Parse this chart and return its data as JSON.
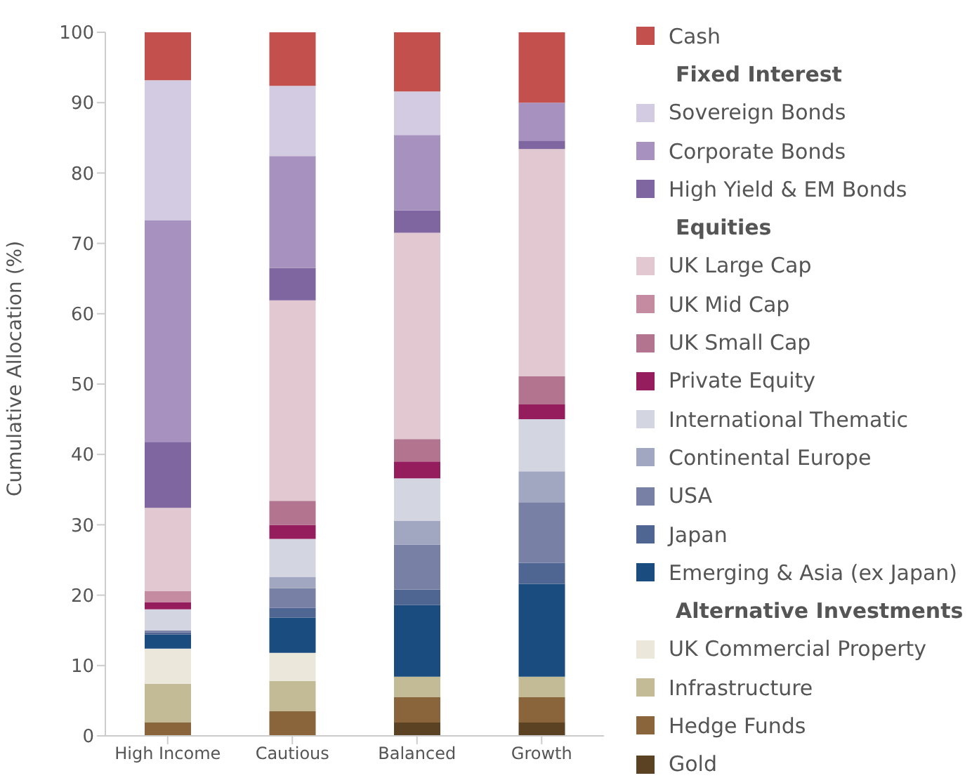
{
  "chart_data": {
    "type": "bar",
    "stacked": true,
    "ylabel": "Cumulative Allocation (%)",
    "categories": [
      "High Income",
      "Cautious",
      "Balanced",
      "Growth"
    ],
    "ylim": [
      0,
      100
    ],
    "yticks": [
      0,
      10,
      20,
      30,
      40,
      50,
      60,
      70,
      80,
      90,
      100
    ],
    "grid": false,
    "legend": "right",
    "annotations": [
      "Fixed Interest",
      "Equities",
      "Alternative Investments"
    ],
    "series": [
      {
        "name": "Gold",
        "color": "#5a4223",
        "values": [
          0,
          0,
          1.9,
          1.9
        ]
      },
      {
        "name": "Hedge Funds",
        "color": "#8a643a",
        "values": [
          1.9,
          3.5,
          3.6,
          3.6
        ]
      },
      {
        "name": "Infrastructure",
        "color": "#c3bb96",
        "values": [
          5.5,
          4.3,
          2.9,
          2.9
        ]
      },
      {
        "name": "UK Commercial Property",
        "color": "#ebe8db",
        "values": [
          5.0,
          4.0,
          0,
          0
        ]
      },
      {
        "name": "Emerging & Asia (ex Japan)",
        "color": "#1a4c7f",
        "values": [
          2.0,
          5.0,
          10.2,
          13.2
        ]
      },
      {
        "name": "Japan",
        "color": "#4f6592",
        "values": [
          0.3,
          1.4,
          2.2,
          3.0
        ]
      },
      {
        "name": "USA",
        "color": "#7880a6",
        "values": [
          0.3,
          2.8,
          6.4,
          8.6
        ]
      },
      {
        "name": "Continental Europe",
        "color": "#a2a7c1",
        "values": [
          0,
          1.6,
          3.4,
          4.4
        ]
      },
      {
        "name": "International Thematic",
        "color": "#d3d5e1",
        "values": [
          3.0,
          5.4,
          6.0,
          7.4
        ]
      },
      {
        "name": "Private Equity",
        "color": "#951d5e",
        "values": [
          1.0,
          2.0,
          2.4,
          2.1
        ]
      },
      {
        "name": "UK Small Cap",
        "color": "#b37490",
        "values": [
          0,
          3.4,
          3.2,
          4.0
        ]
      },
      {
        "name": "UK Mid Cap",
        "color": "#c58ba0",
        "values": [
          1.6,
          0,
          0,
          0
        ]
      },
      {
        "name": "UK Large Cap",
        "color": "#e2c8d1",
        "values": [
          11.8,
          28.5,
          29.3,
          32.3
        ]
      },
      {
        "name": "High Yield & EM Bonds",
        "color": "#7f66a1",
        "values": [
          9.4,
          4.6,
          3.2,
          1.2
        ]
      },
      {
        "name": "Corporate Bonds",
        "color": "#a791be",
        "values": [
          31.5,
          15.9,
          10.7,
          5.4
        ]
      },
      {
        "name": "Sovereign Bonds",
        "color": "#d2cbe1",
        "values": [
          19.9,
          10.0,
          6.2,
          0
        ]
      },
      {
        "name": "Cash",
        "color": "#c4504e",
        "values": [
          6.8,
          7.6,
          8.4,
          10.0
        ]
      }
    ]
  }
}
